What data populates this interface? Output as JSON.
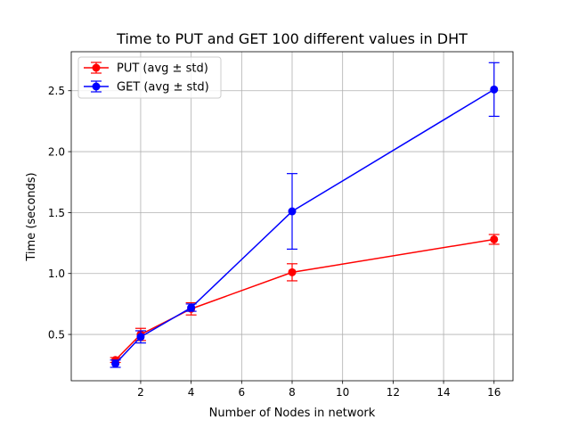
{
  "chart_data": {
    "type": "line",
    "title": "Time to PUT and GET 100 different values in DHT",
    "xlabel": "Number of Nodes in network",
    "ylabel": "Time (seconds)",
    "xlim": [
      -0.75,
      16.75
    ],
    "ylim": [
      0.12,
      2.82
    ],
    "xticks": [
      2,
      4,
      6,
      8,
      10,
      12,
      14,
      16
    ],
    "yticks": [
      0.5,
      1.0,
      1.5,
      2.0,
      2.5
    ],
    "xtick_labels": [
      "2",
      "4",
      "6",
      "8",
      "10",
      "12",
      "14",
      "16"
    ],
    "ytick_labels": [
      "0.5",
      "1.0",
      "1.5",
      "2.0",
      "2.5"
    ],
    "grid": true,
    "legend_position": "top-left",
    "x": [
      1,
      2,
      4,
      8,
      16
    ],
    "series": [
      {
        "name": "PUT (avg ± std)",
        "color": "#ff0000",
        "values": [
          0.29,
          0.5,
          0.71,
          1.01,
          1.28
        ],
        "std": [
          0.02,
          0.05,
          0.05,
          0.07,
          0.04
        ]
      },
      {
        "name": "GET (avg ± std)",
        "color": "#0000ff",
        "values": [
          0.26,
          0.48,
          0.72,
          1.51,
          2.51
        ],
        "std": [
          0.03,
          0.05,
          0.03,
          0.31,
          0.22
        ]
      }
    ]
  }
}
